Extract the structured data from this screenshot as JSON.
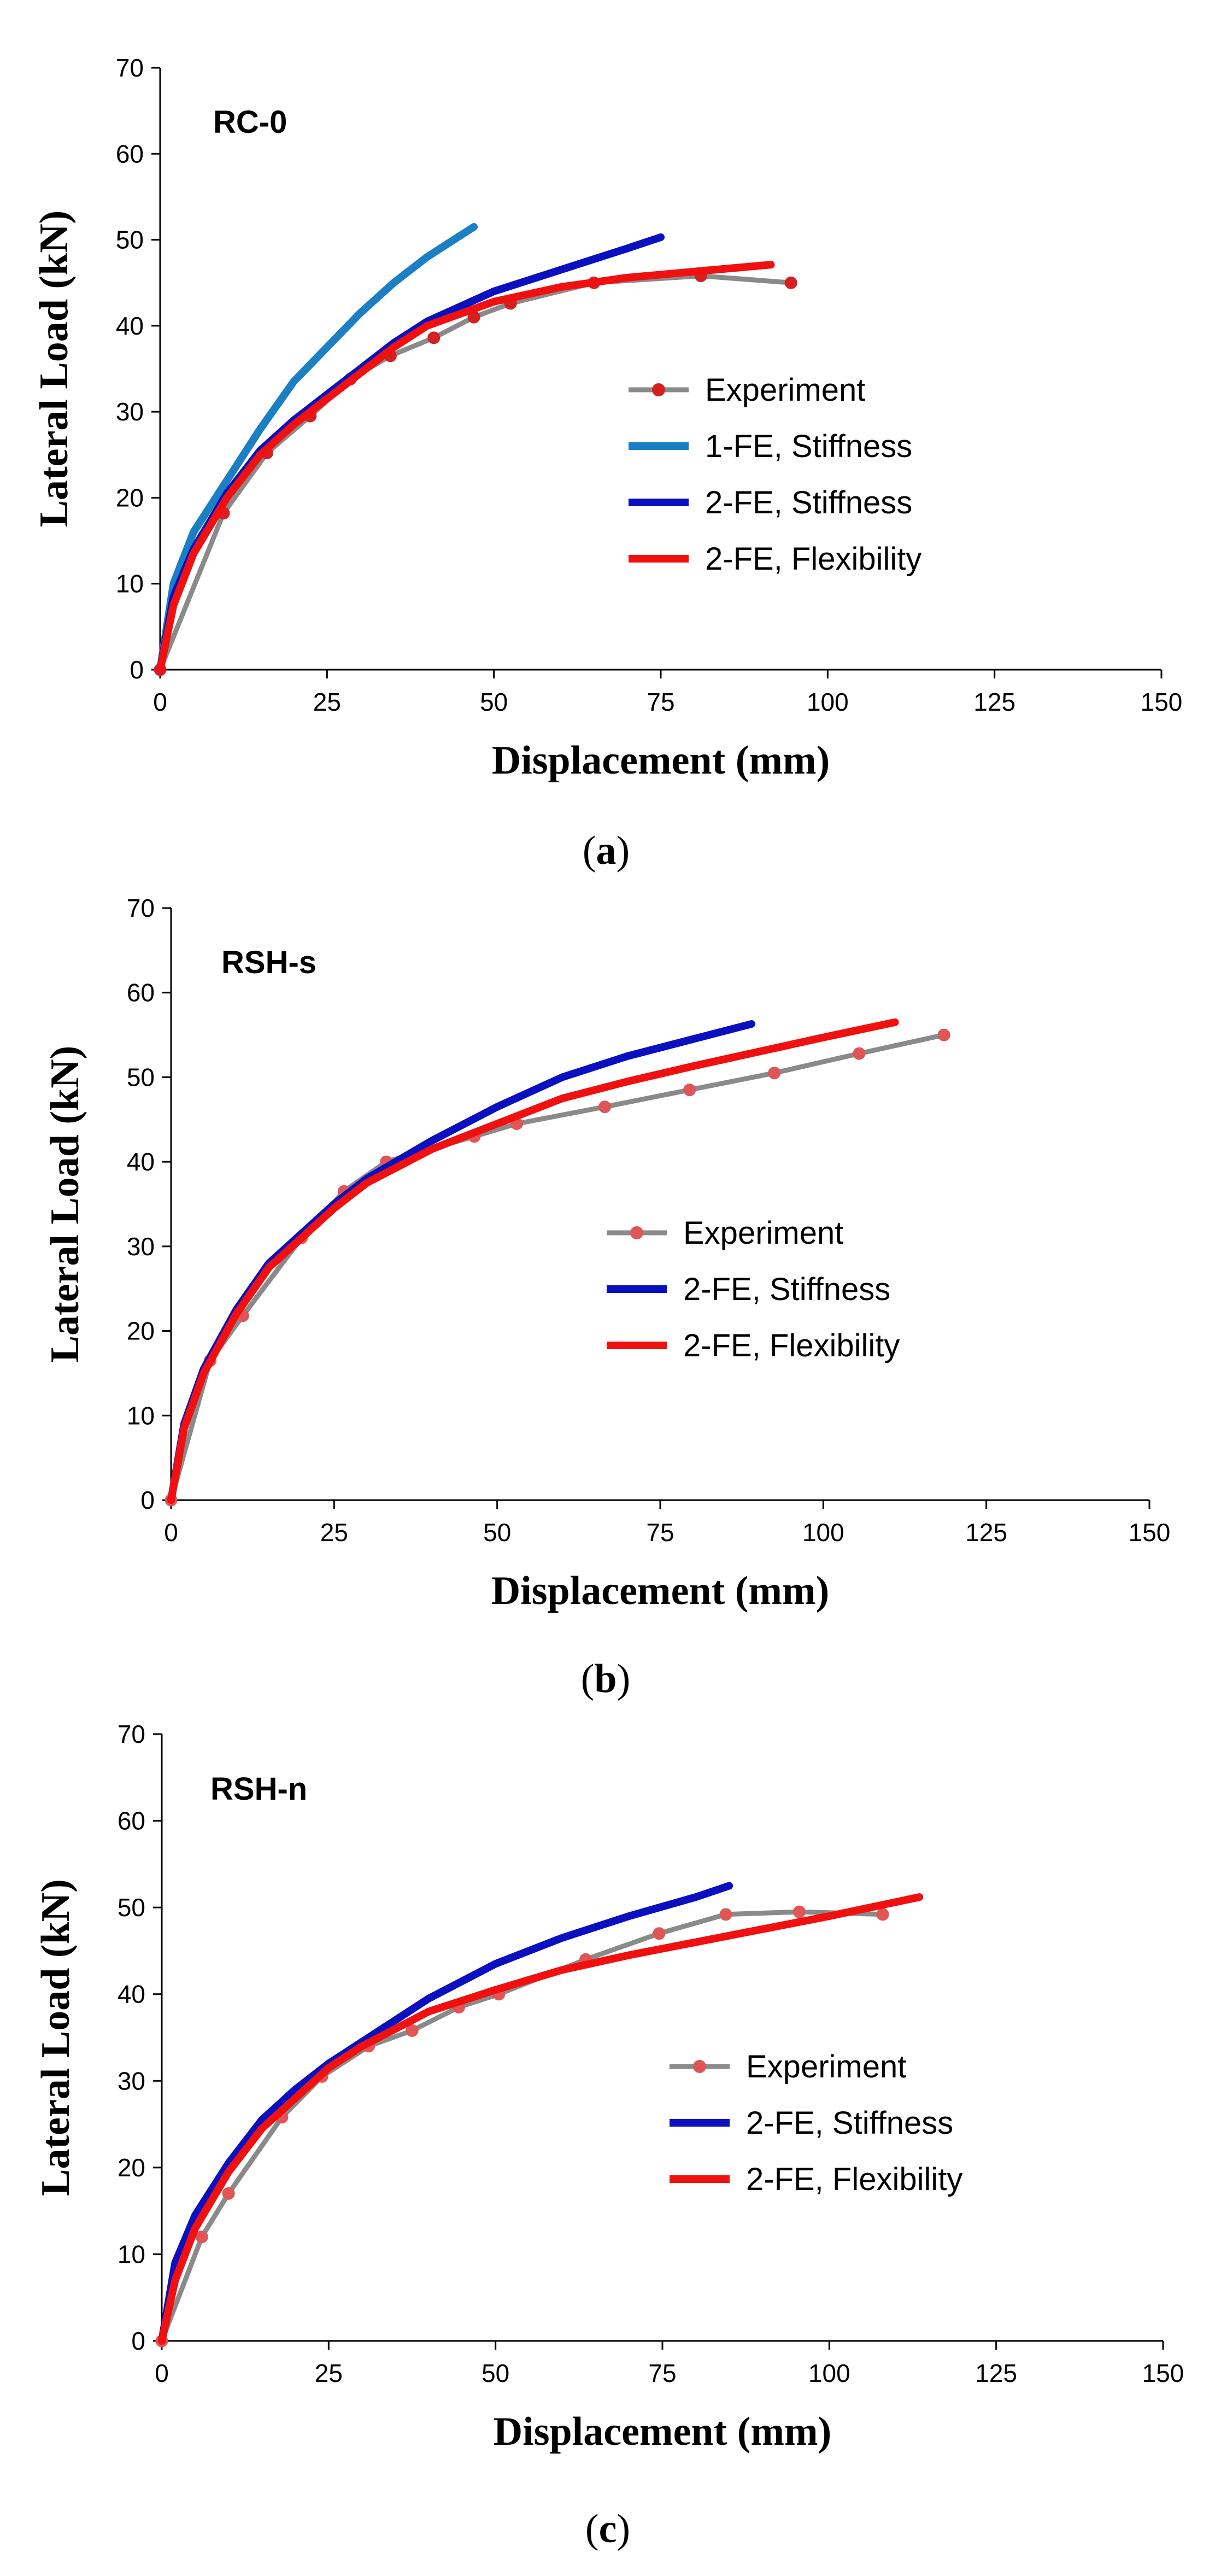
{
  "colors": {
    "experiment_line": "#8a8a8a",
    "experiment_marker_a": "#d42020",
    "experiment_marker_bc": "#e05555",
    "fe1_stiffness": "#1a7fc4",
    "fe2_stiffness": "#0a10c0",
    "fe2_flexibility": "#f01010"
  },
  "chart_data": [
    {
      "type": "line",
      "title": "RC-0",
      "caption_label": "a",
      "xlabel": "Displacement (mm)",
      "ylabel": "Lateral Load (kN)",
      "xlim": [
        0,
        150
      ],
      "ylim": [
        0,
        70
      ],
      "xticks": [
        0,
        25,
        50,
        75,
        100,
        125,
        150
      ],
      "yticks": [
        0,
        10,
        20,
        30,
        40,
        50,
        60,
        70
      ],
      "series": [
        {
          "name": "Experiment",
          "kind": "experiment",
          "x": [
            0,
            9.5,
            16,
            22.5,
            28.5,
            34.5,
            41,
            47,
            52.5,
            65,
            81,
            94.5
          ],
          "y": [
            0,
            18.2,
            25.2,
            29.5,
            33.8,
            36.5,
            38.6,
            41,
            42.6,
            45,
            45.8,
            45
          ]
        },
        {
          "name": "1-FE, Stiffness",
          "kind": "fe1s",
          "x": [
            0,
            2,
            5,
            10,
            15,
            20,
            25,
            30,
            35,
            40,
            47
          ],
          "y": [
            0,
            10,
            16,
            22,
            28,
            33.5,
            37.5,
            41.5,
            45,
            48,
            51.5
          ]
        },
        {
          "name": "2-FE, Stiffness",
          "kind": "fe2s",
          "x": [
            0,
            2,
            5,
            10,
            15,
            20,
            25,
            30,
            35,
            40,
            50,
            60,
            70,
            75
          ],
          "y": [
            0,
            8.5,
            14,
            20.5,
            25.5,
            29,
            32,
            35,
            38,
            40.5,
            44,
            46.5,
            49,
            50.3
          ]
        },
        {
          "name": "2-FE, Flexibility",
          "kind": "fe2f",
          "x": [
            0,
            2,
            5,
            10,
            15,
            20,
            25,
            30,
            35,
            40,
            50,
            60,
            70,
            80,
            91.5
          ],
          "y": [
            0,
            7.5,
            13.5,
            20,
            25,
            28.5,
            31.5,
            34.5,
            37.5,
            40,
            42.8,
            44.5,
            45.6,
            46.3,
            47.1
          ]
        }
      ]
    },
    {
      "type": "line",
      "title": "RSH-s",
      "caption_label": "b",
      "xlabel": "Displacement (mm)",
      "ylabel": "Lateral Load (kN)",
      "xlim": [
        0,
        150
      ],
      "ylim": [
        0,
        70
      ],
      "xticks": [
        0,
        25,
        50,
        75,
        100,
        125,
        150
      ],
      "yticks": [
        0,
        10,
        20,
        30,
        40,
        50,
        60,
        70
      ],
      "series": [
        {
          "name": "Experiment",
          "kind": "experiment",
          "x": [
            0,
            6,
            11,
            20,
            26.5,
            33,
            46.5,
            53,
            66.5,
            79.5,
            92.5,
            105.5,
            118.5
          ],
          "y": [
            0,
            16.5,
            21.8,
            31,
            36.5,
            40,
            43,
            44.5,
            46.5,
            48.5,
            50.5,
            52.8,
            55
          ]
        },
        {
          "name": "2-FE, Stiffness",
          "kind": "fe2s",
          "x": [
            0,
            2,
            5,
            10,
            15,
            20,
            25,
            30,
            40,
            50,
            60,
            70,
            80,
            89
          ],
          "y": [
            0,
            9,
            15.5,
            22.5,
            28,
            31.5,
            35,
            38,
            42.5,
            46.5,
            50,
            52.5,
            54.5,
            56.3
          ]
        },
        {
          "name": "2-FE, Flexibility",
          "kind": "fe2f",
          "x": [
            0,
            2,
            5,
            10,
            15,
            20,
            25,
            30,
            40,
            50,
            60,
            70,
            80,
            90,
            100,
            111
          ],
          "y": [
            0,
            8.5,
            15,
            22,
            27.5,
            31,
            34.5,
            37.5,
            41.5,
            44.5,
            47.5,
            49.5,
            51.3,
            53,
            54.7,
            56.5
          ]
        }
      ]
    },
    {
      "type": "line",
      "title": "RSH-n",
      "caption_label": "c",
      "xlabel": "Displacement (mm)",
      "ylabel": "Lateral Load (kN)",
      "xlim": [
        0,
        150
      ],
      "ylim": [
        0,
        70
      ],
      "xticks": [
        0,
        25,
        50,
        75,
        100,
        125,
        150
      ],
      "yticks": [
        0,
        10,
        20,
        30,
        40,
        50,
        60,
        70
      ],
      "series": [
        {
          "name": "Experiment",
          "kind": "experiment",
          "x": [
            0,
            6,
            10,
            18,
            24,
            31,
            37.5,
            44.5,
            50.5,
            63.5,
            74.5,
            84.5,
            95.5,
            108
          ],
          "y": [
            0,
            12,
            17,
            25.8,
            30.5,
            34,
            35.8,
            38.5,
            40,
            44,
            47,
            49.2,
            49.5,
            49.2
          ]
        },
        {
          "name": "2-FE, Stiffness",
          "kind": "fe2s",
          "x": [
            0,
            2,
            5,
            10,
            15,
            20,
            25,
            30,
            40,
            50,
            60,
            70,
            80,
            85
          ],
          "y": [
            0,
            9,
            14.5,
            20.5,
            25.5,
            29,
            32,
            34.5,
            39.5,
            43.5,
            46.5,
            49,
            51.2,
            52.5
          ]
        },
        {
          "name": "2-FE, Flexibility",
          "kind": "fe2f",
          "x": [
            0,
            2,
            5,
            10,
            15,
            20,
            25,
            30,
            40,
            50,
            60,
            70,
            80,
            90,
            100,
            113.5
          ],
          "y": [
            0,
            7,
            13,
            19.5,
            24.5,
            28,
            31.5,
            34,
            38,
            40.5,
            42.8,
            44.5,
            46,
            47.5,
            49,
            51.2
          ]
        }
      ]
    }
  ]
}
